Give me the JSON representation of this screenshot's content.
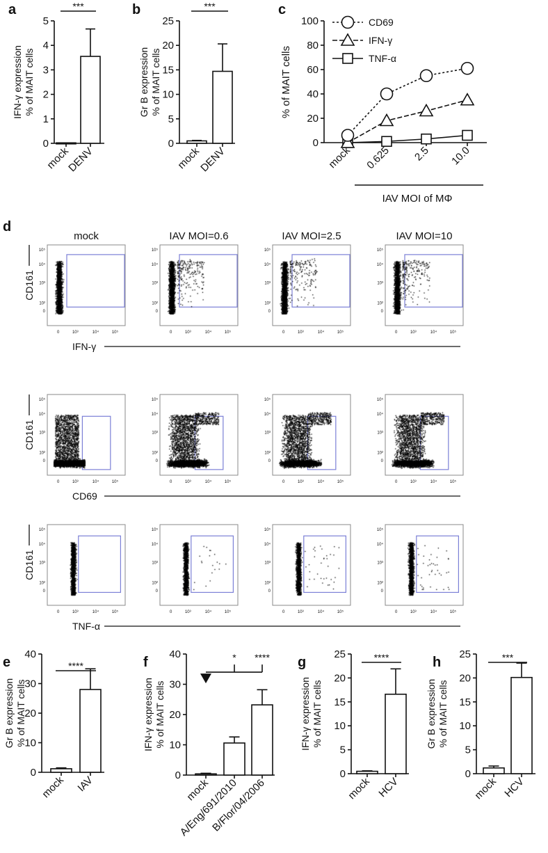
{
  "panel_letters": [
    "a",
    "b",
    "c",
    "d",
    "e",
    "f",
    "g",
    "h"
  ],
  "chart_data": [
    {
      "panel": "a",
      "type": "bar",
      "categories": [
        "mock",
        "DENV"
      ],
      "values": [
        0.02,
        3.55
      ],
      "errors": [
        0,
        1.12
      ],
      "ylabel": [
        "IFN-γ expression",
        "% of MAIT cells"
      ],
      "ylim": [
        0,
        5
      ],
      "yticks": [
        "0",
        "1",
        "2",
        "3",
        "4",
        "5"
      ],
      "significance": {
        "label": "***",
        "from": 0,
        "to": 1
      }
    },
    {
      "panel": "b",
      "type": "bar",
      "categories": [
        "mock",
        "DENV"
      ],
      "values": [
        0.5,
        14.7
      ],
      "errors": [
        0.1,
        5.6
      ],
      "ylabel": [
        "Gr B expression",
        "% of MAIT cells"
      ],
      "ylim": [
        0,
        25
      ],
      "yticks": [
        "0",
        "5",
        "10",
        "15",
        "20",
        "25"
      ],
      "significance": {
        "label": "***",
        "from": 0,
        "to": 1
      }
    },
    {
      "panel": "c",
      "type": "line",
      "x": [
        "mock",
        "0.625",
        "2.5",
        "10.0"
      ],
      "series": [
        {
          "name": "CD69",
          "marker": "circle",
          "values": [
            6,
            40,
            55,
            61
          ]
        },
        {
          "name": "IFN-γ",
          "marker": "triangle",
          "values": [
            0,
            18,
            26,
            35
          ]
        },
        {
          "name": "TNF-α",
          "marker": "square",
          "values": [
            0,
            1,
            3,
            6
          ]
        }
      ],
      "ylabel": "% of MAIT cells",
      "xlabel": "IAV MOI of MΦ",
      "ylim": [
        0,
        100
      ],
      "yticks": [
        "0",
        "20",
        "40",
        "60",
        "80",
        "100"
      ],
      "legend": "top-left"
    },
    {
      "panel": "d",
      "type": "scatter",
      "subtype": "flow-cytometry",
      "columns": [
        "mock",
        "IAV MOI=0.6",
        "IAV MOI=2.5",
        "IAV MOI=10"
      ],
      "rows": [
        {
          "ylabel": "CD161",
          "xlabel": "IFN-γ"
        },
        {
          "ylabel": "CD161",
          "xlabel": "CD69"
        },
        {
          "ylabel": "CD161",
          "xlabel": "TNF-α"
        }
      ],
      "yticks": [
        "10⁵",
        "10⁴",
        "10³",
        "10²",
        "0"
      ],
      "xticks": [
        "0",
        "10³",
        "10⁴",
        "10⁵"
      ],
      "gate_color": "#7b7fd6"
    },
    {
      "panel": "e",
      "type": "bar",
      "categories": [
        "mock",
        "IAV"
      ],
      "values": [
        1.2,
        28
      ],
      "errors": [
        0.3,
        7
      ],
      "ylabel": [
        "Gr B expression",
        "% of MAIT cells"
      ],
      "ylim": [
        0,
        40
      ],
      "yticks": [
        "0",
        "10",
        "20",
        "30",
        "40"
      ],
      "significance": {
        "label": "****",
        "from": 0,
        "to": 1
      }
    },
    {
      "panel": "f",
      "type": "bar",
      "categories": [
        "mock",
        "A/Eng/691/2010",
        "B/Flor/04/2006"
      ],
      "values": [
        0.4,
        10.6,
        23.2
      ],
      "errors": [
        0.2,
        2,
        5
      ],
      "ylabel": [
        "IFN-γ expression",
        "% of MAIT cells"
      ],
      "ylim": [
        0,
        40
      ],
      "yticks": [
        "0",
        "10",
        "20",
        "30",
        "40"
      ],
      "comparisons": [
        {
          "vs": "mock",
          "target": 1,
          "label": "*"
        },
        {
          "vs": "mock",
          "target": 2,
          "label": "****"
        }
      ]
    },
    {
      "panel": "g",
      "type": "bar",
      "categories": [
        "mock",
        "HCV"
      ],
      "values": [
        0.5,
        16.6
      ],
      "errors": [
        0.1,
        5.3
      ],
      "ylabel": [
        "IFN-γ expression",
        "% of MAIT cells"
      ],
      "ylim": [
        0,
        25
      ],
      "yticks": [
        "0",
        "5",
        "10",
        "15",
        "20",
        "25"
      ],
      "significance": {
        "label": "****",
        "from": 0,
        "to": 1
      }
    },
    {
      "panel": "h",
      "type": "bar",
      "categories": [
        "mock",
        "HCV"
      ],
      "values": [
        1.2,
        20.1
      ],
      "errors": [
        0.4,
        3
      ],
      "ylabel": [
        "Gr B expression",
        "% of MAIT cells"
      ],
      "ylim": [
        0,
        25
      ],
      "yticks": [
        "0",
        "5",
        "10",
        "15",
        "20",
        "25"
      ],
      "significance": {
        "label": "***",
        "from": 0,
        "to": 1
      }
    }
  ]
}
